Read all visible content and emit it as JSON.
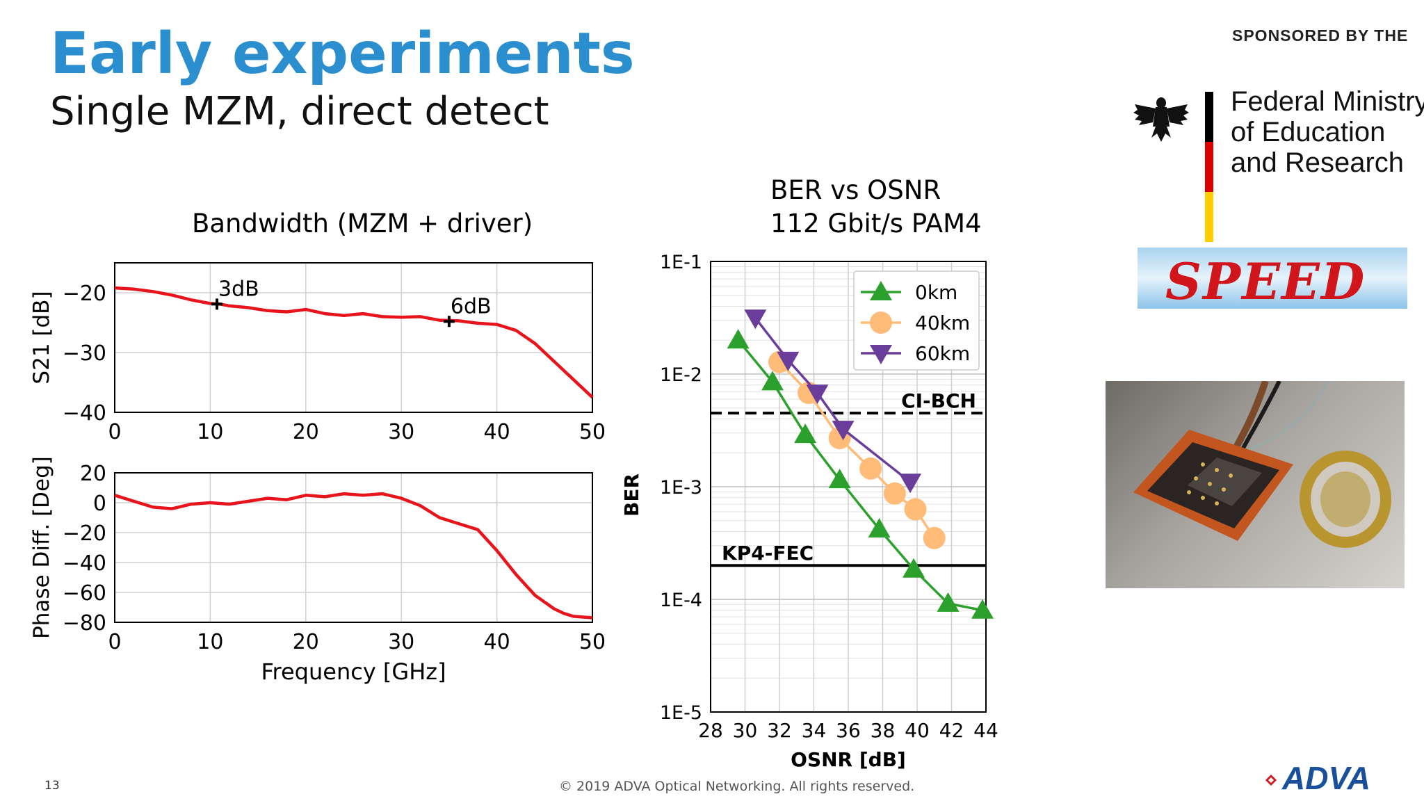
{
  "slide": {
    "title": "Early experiments",
    "subtitle": "Single MZM, direct detect",
    "page_number": "13",
    "footer": "© 2019 ADVA Optical Networking. All rights reserved.",
    "logo": "ADVA"
  },
  "sponsor": {
    "label": "SPONSORED BY THE",
    "ministry_lines": [
      "Federal Ministry",
      "of Education",
      "and Research"
    ],
    "project_logo": "SPEED",
    "flag_colors": [
      "#000000",
      "#dd0000",
      "#ffce00"
    ],
    "eagle_icon": "federal-eagle-icon"
  },
  "colors": {
    "accent": "#2b8fcf",
    "curve_red": "#e8141b",
    "green": "#2ca02c",
    "orange": "#ffbb78",
    "purple": "#6a3d9a"
  },
  "chart_data": [
    {
      "type": "line",
      "title": "Bandwidth (MZM + driver)",
      "xlabel": "",
      "ylabel": "S21 [dB]",
      "xlim": [
        0,
        50
      ],
      "ylim": [
        -40,
        -15
      ],
      "xticks": [
        "0",
        "10",
        "20",
        "30",
        "40",
        "50"
      ],
      "yticks": [
        "−20",
        "−30",
        "−40"
      ],
      "ytick_values": [
        -20,
        -30,
        -40
      ],
      "grid": true,
      "series": [
        {
          "x": [
            0,
            2,
            4,
            6,
            8,
            10,
            11,
            12,
            14,
            16,
            18,
            20,
            22,
            24,
            26,
            28,
            30,
            32,
            34,
            36,
            38,
            40,
            42,
            44,
            46,
            48,
            50
          ],
          "y": [
            -19.2,
            -19.4,
            -19.8,
            -20.4,
            -21.2,
            -21.8,
            -21.9,
            -22.2,
            -22.5,
            -23,
            -23.2,
            -22.8,
            -23.5,
            -23.8,
            -23.5,
            -24,
            -24.1,
            -24,
            -24.6,
            -24.7,
            -25.1,
            -25.3,
            -26.3,
            -28.5,
            -31.5,
            -34.5,
            -37.5
          ]
        }
      ],
      "annotations": [
        {
          "text": "3dB",
          "x": 10.7,
          "y": -21.9
        },
        {
          "text": "6dB",
          "x": 35,
          "y": -24.8
        }
      ]
    },
    {
      "type": "line",
      "title": "",
      "xlabel": "Frequency [GHz]",
      "ylabel": "Phase Diff. [Deg]",
      "xlim": [
        0,
        50
      ],
      "ylim": [
        -80,
        20
      ],
      "xticks": [
        "0",
        "10",
        "20",
        "30",
        "40",
        "50"
      ],
      "yticks": [
        "20",
        "0",
        "−20",
        "−40",
        "−60",
        "−80"
      ],
      "ytick_values": [
        20,
        0,
        -20,
        -40,
        -60,
        -80
      ],
      "grid": true,
      "series": [
        {
          "x": [
            0,
            2,
            4,
            6,
            8,
            10,
            12,
            14,
            16,
            18,
            20,
            22,
            24,
            26,
            28,
            30,
            32,
            34,
            36,
            38,
            40,
            42,
            44,
            46,
            47,
            48,
            50
          ],
          "y": [
            5,
            1,
            -3,
            -4,
            -1,
            0,
            -1,
            1,
            3,
            2,
            5,
            4,
            6,
            5,
            6,
            3,
            -2,
            -10,
            -14,
            -18,
            -32,
            -48,
            -62,
            -71,
            -74,
            -76,
            -77
          ]
        }
      ]
    },
    {
      "type": "line",
      "title": "BER vs OSNR",
      "subtitle": "112 Gbit/s PAM4",
      "xlabel": "OSNR [dB]",
      "ylabel": "BER",
      "xlim": [
        28,
        44
      ],
      "ylim": [
        1e-05,
        0.1
      ],
      "yscale": "log",
      "xticks": [
        "28",
        "30",
        "32",
        "34",
        "36",
        "38",
        "40",
        "42",
        "44"
      ],
      "yticks": [
        "1E-1",
        "1E-2",
        "1E-3",
        "1E-4",
        "1E-5"
      ],
      "ytick_values": [
        0.1,
        0.01,
        0.001,
        0.0001,
        1e-05
      ],
      "grid": true,
      "legend_position": "top-right",
      "series": [
        {
          "name": "0km",
          "marker": "triangle-up",
          "color": "#2ca02c",
          "x": [
            29.6,
            31.6,
            33.5,
            35.5,
            37.8,
            39.8,
            41.8,
            43.8
          ],
          "y": [
            0.02,
            0.0085,
            0.0029,
            0.00115,
            0.00042,
            0.000185,
            9.2e-05,
            8e-05
          ]
        },
        {
          "name": "40km",
          "marker": "circle",
          "color": "#ffbb78",
          "x": [
            32,
            33.7,
            35.5,
            37.3,
            38.7,
            39.9,
            41
          ],
          "y": [
            0.0128,
            0.0068,
            0.0027,
            0.00145,
            0.00087,
            0.00063,
            0.00035
          ]
        },
        {
          "name": "60km",
          "marker": "triangle-down",
          "color": "#6a3d9a",
          "x": [
            30.6,
            32.5,
            34.2,
            35.7,
            39.6
          ],
          "y": [
            0.0315,
            0.0133,
            0.0068,
            0.00325,
            0.0011
          ]
        }
      ],
      "thresholds": [
        {
          "label": "CI-BCH",
          "y": 0.0045,
          "style": "dashed"
        },
        {
          "label": "KP4-FEC",
          "y": 0.0002,
          "style": "solid"
        }
      ]
    }
  ]
}
